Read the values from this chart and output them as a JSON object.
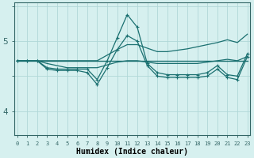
{
  "title": "",
  "xlabel": "Humidex (Indice chaleur)",
  "ylabel": "",
  "background_color": "#d6f0ef",
  "grid_color": "#b0d8d8",
  "line_color": "#1a7070",
  "x_ticks": [
    0,
    1,
    2,
    3,
    4,
    5,
    6,
    7,
    8,
    9,
    10,
    11,
    12,
    13,
    14,
    15,
    16,
    17,
    18,
    19,
    20,
    21,
    22,
    23
  ],
  "y_ticks": [
    4,
    5
  ],
  "ylim": [
    3.65,
    5.55
  ],
  "xlim": [
    -0.3,
    23.3
  ],
  "series": [
    {
      "x": [
        0,
        1,
        2,
        3,
        4,
        5,
        6,
        7,
        8,
        9,
        10,
        11,
        12,
        13,
        14,
        15,
        16,
        17,
        18,
        19,
        20,
        21,
        22,
        23
      ],
      "y": [
        4.72,
        4.72,
        4.72,
        4.72,
        4.72,
        4.72,
        4.72,
        4.72,
        4.72,
        4.72,
        4.72,
        4.72,
        4.72,
        4.72,
        4.72,
        4.72,
        4.72,
        4.72,
        4.72,
        4.72,
        4.72,
        4.72,
        4.72,
        4.72
      ],
      "marker": null,
      "linewidth": 1.0
    },
    {
      "x": [
        0,
        1,
        2,
        3,
        4,
        5,
        6,
        7,
        8,
        9,
        10,
        11,
        12,
        13,
        14,
        15,
        16,
        17,
        18,
        19,
        20,
        21,
        22,
        23
      ],
      "y": [
        4.72,
        4.72,
        4.72,
        4.72,
        4.72,
        4.72,
        4.72,
        4.72,
        4.72,
        4.8,
        4.88,
        4.95,
        4.95,
        4.9,
        4.85,
        4.85,
        4.87,
        4.89,
        4.92,
        4.95,
        4.98,
        5.02,
        4.98,
        5.1
      ],
      "marker": null,
      "linewidth": 0.9
    },
    {
      "x": [
        0,
        1,
        2,
        3,
        4,
        5,
        6,
        7,
        8,
        9,
        10,
        11,
        12,
        13,
        14,
        15,
        16,
        17,
        18,
        19,
        20,
        21,
        22,
        23
      ],
      "y": [
        4.72,
        4.72,
        4.72,
        4.68,
        4.65,
        4.62,
        4.62,
        4.62,
        4.62,
        4.66,
        4.7,
        4.72,
        4.72,
        4.7,
        4.68,
        4.68,
        4.68,
        4.68,
        4.68,
        4.7,
        4.72,
        4.74,
        4.72,
        4.78
      ],
      "marker": null,
      "linewidth": 0.9
    },
    {
      "x": [
        0,
        1,
        2,
        3,
        4,
        5,
        6,
        7,
        8,
        9,
        10,
        11,
        12,
        13,
        14,
        15,
        16,
        17,
        18,
        19,
        20,
        21,
        22,
        23
      ],
      "y": [
        4.72,
        4.72,
        4.72,
        4.62,
        4.6,
        4.6,
        4.6,
        4.6,
        4.45,
        4.72,
        5.05,
        5.38,
        5.2,
        4.68,
        4.55,
        4.52,
        4.52,
        4.52,
        4.52,
        4.55,
        4.65,
        4.52,
        4.5,
        4.82
      ],
      "marker": "+",
      "linewidth": 0.9
    },
    {
      "x": [
        0,
        1,
        2,
        3,
        4,
        5,
        6,
        7,
        8,
        9,
        10,
        11,
        12,
        13,
        14,
        15,
        16,
        17,
        18,
        19,
        20,
        21,
        22,
        23
      ],
      "y": [
        4.72,
        4.72,
        4.72,
        4.6,
        4.58,
        4.58,
        4.58,
        4.55,
        4.38,
        4.62,
        4.88,
        5.08,
        5.0,
        4.65,
        4.5,
        4.48,
        4.48,
        4.48,
        4.48,
        4.5,
        4.6,
        4.48,
        4.45,
        4.78
      ],
      "marker": "+",
      "linewidth": 0.9
    }
  ]
}
